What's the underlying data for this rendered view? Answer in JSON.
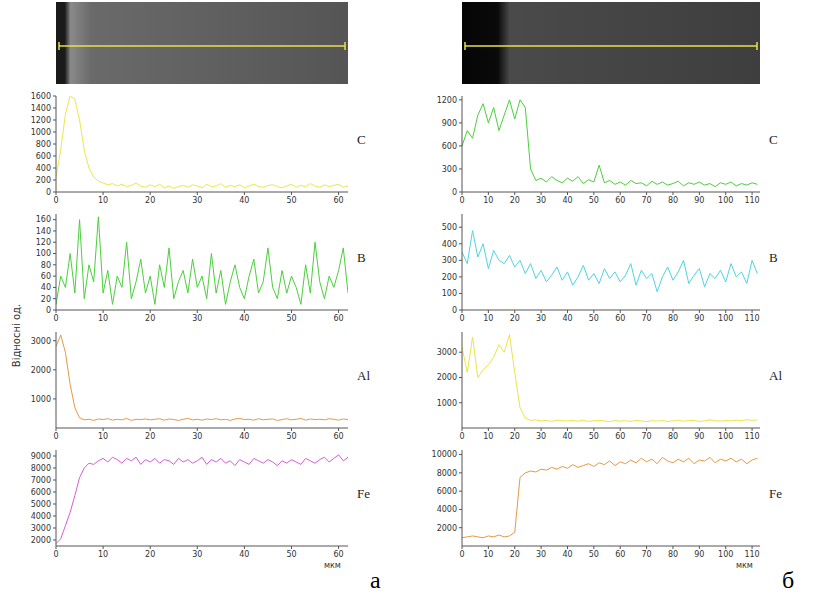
{
  "chart_data": [
    {
      "type": "line",
      "title": "а",
      "ylabel": "Відносні од.",
      "xlabel": "мкм",
      "xlim": [
        0,
        62
      ],
      "xticks": [
        0,
        10,
        20,
        30,
        40,
        50,
        60
      ],
      "x": [
        0,
        1,
        2,
        3,
        4,
        5,
        6,
        7,
        8,
        9,
        10,
        11,
        12,
        13,
        14,
        15,
        16,
        17,
        18,
        19,
        20,
        21,
        22,
        23,
        24,
        25,
        26,
        27,
        28,
        29,
        30,
        31,
        32,
        33,
        34,
        35,
        36,
        37,
        38,
        39,
        40,
        41,
        42,
        43,
        44,
        45,
        46,
        47,
        48,
        49,
        50,
        51,
        52,
        53,
        54,
        55,
        56,
        57,
        58,
        59,
        60,
        61,
        62
      ],
      "series": [
        {
          "name": "C",
          "color": "#ece64a",
          "ylim": [
            0,
            1600
          ],
          "yticks": [
            0,
            200,
            400,
            600,
            800,
            1000,
            1200,
            1400,
            1600
          ],
          "values": [
            250,
            700,
            1300,
            1600,
            1550,
            1200,
            700,
            400,
            250,
            180,
            150,
            120,
            140,
            100,
            130,
            90,
            110,
            150,
            100,
            80,
            120,
            90,
            130,
            70,
            100,
            60,
            90,
            110,
            80,
            120,
            100,
            70,
            130,
            90,
            100,
            140,
            80,
            110,
            90,
            120,
            70,
            100,
            130,
            90,
            80,
            110,
            120,
            90,
            70,
            100,
            130,
            80,
            110,
            90,
            140,
            100,
            80,
            120,
            90,
            110,
            130,
            80,
            100
          ]
        },
        {
          "name": "B",
          "color": "#4ccf3c",
          "ylim": [
            0,
            170
          ],
          "yticks": [
            0,
            20,
            40,
            60,
            80,
            100,
            120,
            140,
            160
          ],
          "values": [
            10,
            60,
            40,
            100,
            30,
            160,
            20,
            80,
            50,
            165,
            30,
            70,
            10,
            60,
            40,
            120,
            20,
            50,
            90,
            30,
            60,
            10,
            80,
            40,
            110,
            20,
            50,
            70,
            30,
            90,
            40,
            60,
            20,
            100,
            30,
            70,
            10,
            50,
            80,
            40,
            20,
            60,
            90,
            30,
            50,
            110,
            40,
            20,
            70,
            30,
            60,
            40,
            10,
            80,
            30,
            120,
            50,
            20,
            60,
            40,
            70,
            110,
            30
          ]
        },
        {
          "name": "Al",
          "color": "#e59a45",
          "ylim": [
            0,
            3300
          ],
          "yticks": [
            1000,
            2000,
            3000
          ],
          "values": [
            2800,
            3200,
            2600,
            1500,
            700,
            350,
            280,
            300,
            260,
            310,
            290,
            320,
            270,
            300,
            280,
            330,
            260,
            300,
            290,
            310,
            280,
            300,
            320,
            270,
            310,
            290,
            260,
            300,
            330,
            280,
            300,
            270,
            310,
            290,
            320,
            280,
            300,
            260,
            310,
            330,
            290,
            300,
            270,
            320,
            280,
            300,
            310,
            260,
            290,
            320,
            280,
            300,
            330,
            270,
            310,
            290,
            300,
            280,
            320,
            300,
            270,
            310,
            290
          ]
        },
        {
          "name": "Fe",
          "color": "#d35ed8",
          "ylim": [
            1500,
            9500
          ],
          "yticks": [
            2000,
            3000,
            4000,
            5000,
            6000,
            7000,
            8000,
            9000
          ],
          "values": [
            1700,
            2100,
            3200,
            4300,
            5700,
            7200,
            8000,
            8400,
            8300,
            8600,
            8800,
            8500,
            8900,
            8700,
            8400,
            8800,
            8600,
            8900,
            8300,
            8700,
            8500,
            8800,
            8400,
            8700,
            8600,
            8300,
            8800,
            8500,
            8700,
            8400,
            8600,
            8900,
            8300,
            8700,
            8500,
            8800,
            8400,
            8600,
            8200,
            8700,
            8500,
            8300,
            8800,
            8600,
            8400,
            8700,
            8500,
            8200,
            8600,
            8400,
            8700,
            8500,
            8300,
            8800,
            8600,
            8400,
            8700,
            8900,
            8500,
            8800,
            9100,
            8600,
            8900
          ]
        }
      ]
    },
    {
      "type": "line",
      "title": "б",
      "xlabel": "мкм",
      "xlim": [
        0,
        113
      ],
      "xticks": [
        0,
        10,
        20,
        30,
        40,
        50,
        60,
        70,
        80,
        90,
        100,
        110
      ],
      "x": [
        0,
        2,
        4,
        6,
        8,
        10,
        12,
        14,
        16,
        18,
        20,
        22,
        24,
        26,
        28,
        30,
        32,
        34,
        36,
        38,
        40,
        42,
        44,
        46,
        48,
        50,
        52,
        54,
        56,
        58,
        60,
        62,
        64,
        66,
        68,
        70,
        72,
        74,
        76,
        78,
        80,
        82,
        84,
        86,
        88,
        90,
        92,
        94,
        96,
        98,
        100,
        102,
        104,
        106,
        108,
        110,
        112
      ],
      "series": [
        {
          "name": "C",
          "color": "#4ccf3c",
          "ylim": [
            0,
            1250
          ],
          "yticks": [
            0,
            300,
            600,
            900,
            1200
          ],
          "values": [
            600,
            800,
            700,
            1000,
            1150,
            900,
            1100,
            800,
            1000,
            1200,
            950,
            1200,
            1100,
            300,
            150,
            180,
            130,
            200,
            150,
            120,
            180,
            140,
            200,
            110,
            160,
            130,
            350,
            120,
            150,
            100,
            130,
            90,
            150,
            110,
            120,
            80,
            140,
            100,
            130,
            90,
            110,
            140,
            80,
            120,
            100,
            130,
            90,
            110,
            70,
            120,
            100,
            130,
            80,
            110,
            90,
            120,
            100
          ]
        },
        {
          "name": "B",
          "color": "#4fd4e0",
          "ylim": [
            0,
            580
          ],
          "yticks": [
            0,
            100,
            200,
            300,
            400,
            500
          ],
          "values": [
            350,
            280,
            480,
            320,
            400,
            250,
            360,
            300,
            280,
            330,
            260,
            300,
            220,
            280,
            190,
            240,
            170,
            210,
            260,
            180,
            230,
            150,
            200,
            270,
            180,
            220,
            160,
            250,
            190,
            230,
            170,
            210,
            280,
            150,
            240,
            190,
            220,
            110,
            200,
            260,
            180,
            230,
            300,
            160,
            210,
            250,
            140,
            220,
            190,
            240,
            170,
            280,
            200,
            230,
            160,
            300,
            220
          ]
        },
        {
          "name": "Al",
          "color": "#ebe44a",
          "ylim": [
            0,
            3800
          ],
          "yticks": [
            1000,
            2000,
            3000
          ],
          "values": [
            3200,
            2200,
            3600,
            2000,
            2300,
            2500,
            2800,
            3300,
            3000,
            3700,
            2200,
            800,
            400,
            300,
            320,
            280,
            300,
            260,
            310,
            290,
            280,
            300,
            270,
            310,
            260,
            290,
            300,
            280,
            250,
            300,
            270,
            290,
            260,
            300,
            280,
            250,
            290,
            270,
            300,
            260,
            280,
            310,
            270,
            290,
            300,
            260,
            280,
            320,
            290,
            270,
            300,
            280,
            310,
            290,
            330,
            300,
            320
          ]
        },
        {
          "name": "Fe",
          "color": "#e59a45",
          "ylim": [
            0,
            10500
          ],
          "yticks": [
            2000,
            4000,
            6000,
            8000,
            10000
          ],
          "values": [
            900,
            1000,
            1100,
            1000,
            900,
            1100,
            1000,
            1200,
            1000,
            1100,
            1500,
            7500,
            8000,
            8200,
            8100,
            8400,
            8300,
            8600,
            8400,
            8700,
            8500,
            8900,
            8600,
            8800,
            9000,
            8700,
            9100,
            8900,
            9300,
            8800,
            9200,
            9000,
            9400,
            9100,
            9600,
            9200,
            9500,
            9000,
            9700,
            9300,
            9100,
            9500,
            9200,
            9600,
            9000,
            9400,
            9300,
            9700,
            9100,
            9500,
            9300,
            9600,
            9200,
            9500,
            9000,
            9400,
            9600
          ]
        }
      ]
    }
  ]
}
